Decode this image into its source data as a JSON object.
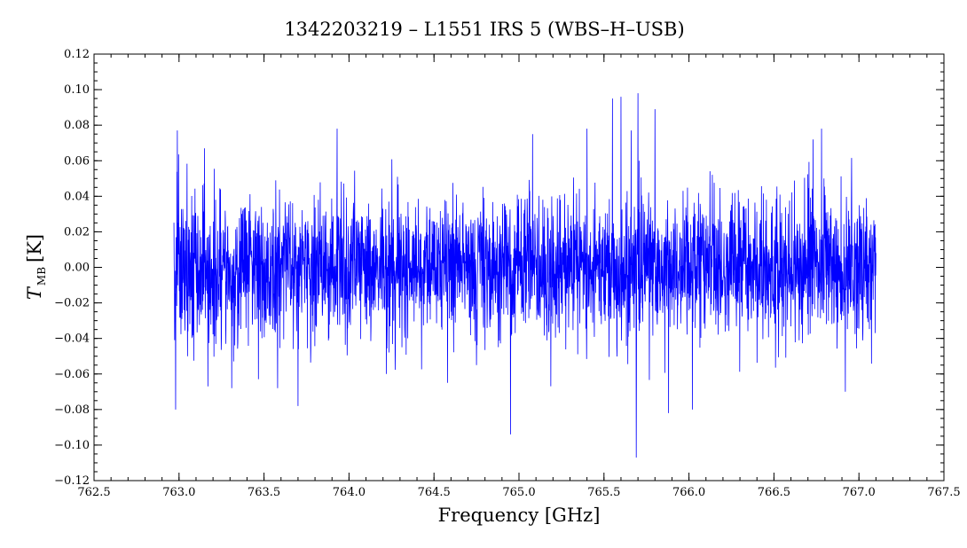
{
  "chart_data": {
    "type": "line",
    "title": "1342203219 – L1551 IRS 5 (WBS–H–USB)",
    "xlabel": "Frequency [GHz]",
    "ylabel_main": "T",
    "ylabel_sub": "MB",
    "ylabel_unit": "[K]",
    "xlim": [
      762.5,
      767.5
    ],
    "ylim": [
      -0.12,
      0.12
    ],
    "xticks": [
      762.5,
      763.0,
      763.5,
      764.0,
      764.5,
      765.0,
      765.5,
      766.0,
      766.5,
      767.0,
      767.5
    ],
    "xtick_labels": [
      "762.5",
      "763.0",
      "763.5",
      "764.0",
      "764.5",
      "765.0",
      "765.5",
      "766.0",
      "766.5",
      "767.0",
      "767.5"
    ],
    "yticks": [
      -0.12,
      -0.1,
      -0.08,
      -0.06,
      -0.04,
      -0.02,
      0.0,
      0.02,
      0.04,
      0.06,
      0.08,
      0.1,
      0.12
    ],
    "ytick_labels": [
      "−0.12",
      "−0.10",
      "−0.08",
      "−0.06",
      "−0.04",
      "−0.02",
      "0.00",
      "0.02",
      "0.04",
      "0.06",
      "0.08",
      "0.10",
      "0.12"
    ],
    "grid": false,
    "series": [
      {
        "color": "#0000ff",
        "x_start": 762.97,
        "x_end": 767.1,
        "sigma": 0.02,
        "extremes": [
          {
            "x": 762.98,
            "y": -0.08
          },
          {
            "x": 762.99,
            "y": 0.077
          },
          {
            "x": 763.05,
            "y": -0.05
          },
          {
            "x": 763.15,
            "y": 0.067
          },
          {
            "x": 763.17,
            "y": -0.067
          },
          {
            "x": 763.31,
            "y": -0.068
          },
          {
            "x": 763.58,
            "y": -0.068
          },
          {
            "x": 763.7,
            "y": -0.078
          },
          {
            "x": 763.93,
            "y": 0.078
          },
          {
            "x": 764.22,
            "y": -0.06
          },
          {
            "x": 764.58,
            "y": -0.065
          },
          {
            "x": 764.75,
            "y": -0.055
          },
          {
            "x": 764.95,
            "y": -0.094
          },
          {
            "x": 765.08,
            "y": 0.075
          },
          {
            "x": 765.4,
            "y": 0.078
          },
          {
            "x": 765.55,
            "y": 0.095
          },
          {
            "x": 765.6,
            "y": 0.096
          },
          {
            "x": 765.66,
            "y": 0.077
          },
          {
            "x": 765.69,
            "y": -0.107
          },
          {
            "x": 765.7,
            "y": 0.098
          },
          {
            "x": 765.8,
            "y": 0.089
          },
          {
            "x": 765.88,
            "y": -0.082
          },
          {
            "x": 766.02,
            "y": -0.08
          },
          {
            "x": 766.73,
            "y": 0.072
          },
          {
            "x": 766.78,
            "y": 0.078
          },
          {
            "x": 766.92,
            "y": -0.07
          }
        ]
      }
    ]
  }
}
